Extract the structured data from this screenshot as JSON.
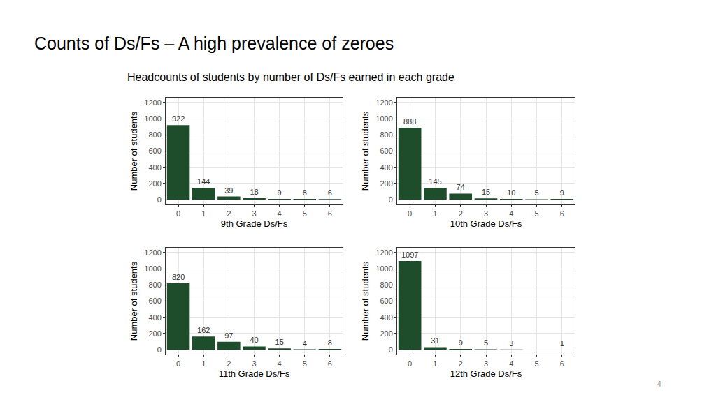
{
  "slide_title": "Counts of Ds/Fs – A high prevalence of zeroes",
  "figure_title": "Headcounts of students by number of Ds/Fs earned in each grade",
  "page_number": "4",
  "chart_data": [
    {
      "type": "bar",
      "x_label": "9th Grade Ds/Fs",
      "y_label": "Number of students",
      "categories": [
        "0",
        "1",
        "2",
        "3",
        "4",
        "5",
        "6"
      ],
      "values": [
        922,
        144,
        39,
        18,
        9,
        8,
        6
      ],
      "color": "#1e4d2b",
      "ylim": [
        -60,
        1260
      ],
      "yticks": [
        0,
        200,
        400,
        600,
        800,
        1000,
        1200
      ],
      "grid": true,
      "data_labels": true
    },
    {
      "type": "bar",
      "x_label": "10th Grade Ds/Fs",
      "y_label": "Number of students",
      "categories": [
        "0",
        "1",
        "2",
        "3",
        "4",
        "5",
        "6"
      ],
      "values": [
        888,
        145,
        74,
        15,
        10,
        5,
        9
      ],
      "color": "#1e4d2b",
      "ylim": [
        -60,
        1260
      ],
      "yticks": [
        0,
        200,
        400,
        600,
        800,
        1000,
        1200
      ],
      "grid": true,
      "data_labels": true
    },
    {
      "type": "bar",
      "x_label": "11th Grade Ds/Fs",
      "y_label": "Number of students",
      "categories": [
        "0",
        "1",
        "2",
        "3",
        "4",
        "5",
        "6"
      ],
      "values": [
        820,
        162,
        97,
        40,
        15,
        4,
        8
      ],
      "color": "#1e4d2b",
      "ylim": [
        -60,
        1260
      ],
      "yticks": [
        0,
        200,
        400,
        600,
        800,
        1000,
        1200
      ],
      "grid": true,
      "data_labels": true
    },
    {
      "type": "bar",
      "x_label": "12th Grade Ds/Fs",
      "y_label": "Number of students",
      "categories": [
        "0",
        "1",
        "2",
        "3",
        "4",
        "5",
        "6"
      ],
      "values": [
        1097,
        31,
        9,
        5,
        3,
        null,
        1
      ],
      "color": "#1e4d2b",
      "ylim": [
        -60,
        1260
      ],
      "yticks": [
        0,
        200,
        400,
        600,
        800,
        1000,
        1200
      ],
      "grid": true,
      "data_labels": true
    }
  ]
}
